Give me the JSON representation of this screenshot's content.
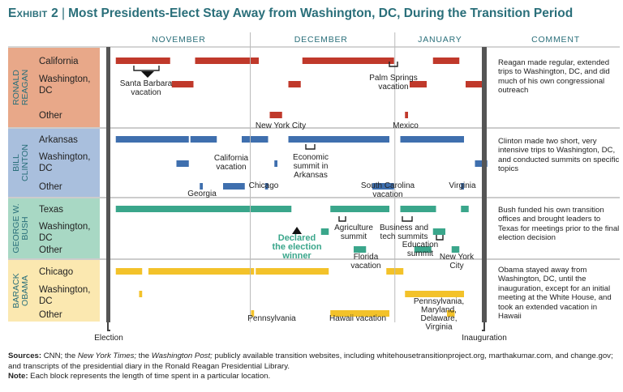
{
  "title": {
    "exhibit": "Exhibit 2",
    "text": "Most Presidents-Elect Stay Away from Washington, DC, During the Transition Period"
  },
  "colors": {
    "accent": "#2a6f7a",
    "reagan_bar": "#c0392b",
    "reagan_bg": "#e8a889",
    "clinton_bar": "#3f6fae",
    "clinton_bg": "#a9bfdd",
    "bush_bar": "#3aa68b",
    "bush_bg": "#a8d8c4",
    "obama_bar": "#f3c22a",
    "obama_bg": "#fbe8b0",
    "divider": "#555555"
  },
  "chart_data": {
    "type": "gantt",
    "x_unit": "day of transition period (Nov 1 – Jan 20)",
    "months": [
      {
        "label": "NOVEMBER",
        "start_day": 1,
        "end_day": 30
      },
      {
        "label": "DECEMBER",
        "start_day": 31,
        "end_day": 61
      },
      {
        "label": "JANUARY",
        "start_day": 62,
        "end_day": 81
      }
    ],
    "comment_header": "COMMENT",
    "election_label": "Election",
    "inauguration_label": "Inauguration",
    "groups": [
      {
        "name": "RONALD REAGAN",
        "bar_color": "#c0392b",
        "bg_color": "#e8a889",
        "rows": [
          {
            "label": "California",
            "segments": [
              [
                2,
                14
              ],
              [
                19,
                33
              ],
              [
                42,
                62
              ],
              [
                70,
                76
              ]
            ]
          },
          {
            "label": "Washington, DC",
            "segments": [
              [
                14,
                19
              ],
              [
                39,
                42
              ],
              [
                65,
                69
              ],
              [
                77,
                81
              ]
            ]
          },
          {
            "label": "Other",
            "segments": [
              [
                35,
                38
              ],
              [
                64,
                65
              ]
            ]
          }
        ],
        "comment": "Reagan made regular, extended trips to Washington, DC, and did much of his own congressional outreach"
      },
      {
        "name": "BILL CLINTON",
        "bar_color": "#3f6fae",
        "bg_color": "#a9bfdd",
        "rows": [
          {
            "label": "Arkansas",
            "segments": [
              [
                2,
                18
              ],
              [
                18,
                24
              ],
              [
                29,
                35
              ],
              [
                39,
                61
              ],
              [
                63,
                77
              ]
            ]
          },
          {
            "label": "Washington, DC",
            "segments": [
              [
                15,
                18
              ],
              [
                36,
                37
              ],
              [
                79,
                82
              ]
            ]
          },
          {
            "label": "Other",
            "segments": [
              [
                20,
                21
              ],
              [
                25,
                30
              ],
              [
                34,
                35
              ],
              [
                57,
                62
              ],
              [
                76,
                77
              ]
            ]
          }
        ],
        "comment": "Clinton made two short, very intensive trips to Washington, DC, and conducted summits on specific topics"
      },
      {
        "name": "GEORGE W. BUSH",
        "bar_color": "#3aa68b",
        "bg_color": "#a8d8c4",
        "rows": [
          {
            "label": "Texas",
            "segments": [
              [
                2,
                40
              ],
              [
                48,
                61
              ],
              [
                63,
                71
              ],
              [
                76,
                78
              ]
            ]
          },
          {
            "label": "Washington, DC",
            "segments": [
              [
                46,
                48
              ],
              [
                70,
                73
              ]
            ]
          },
          {
            "label": "Other",
            "segments": [
              [
                53,
                56
              ],
              [
                66,
                70
              ],
              [
                74,
                76
              ]
            ]
          }
        ],
        "comment": "Bush funded his own transition offices and brought leaders to Texas for meetings prior to the final election decision"
      },
      {
        "name": "BARACK OBAMA",
        "bar_color": "#f3c22a",
        "bg_color": "#fbe8b0",
        "rows": [
          {
            "label": "Chicago",
            "segments": [
              [
                2,
                8
              ],
              [
                9,
                32
              ],
              [
                32,
                48
              ],
              [
                60,
                64
              ]
            ]
          },
          {
            "label": "Washington, DC",
            "segments": [
              [
                7,
                8
              ],
              [
                64,
                77
              ]
            ]
          },
          {
            "label": "Other",
            "segments": [
              [
                31,
                32
              ],
              [
                48,
                61
              ],
              [
                73,
                75
              ]
            ]
          }
        ],
        "comment": "Obama stayed away from Washington, DC, until the inauguration, except for an initial meeting at the White House, and took an extended vacation in Hawaii"
      }
    ],
    "annotations": [
      {
        "text": "Santa Barbara vacation",
        "group": 0
      },
      {
        "text": "Palm Springs vacation",
        "group": 0
      },
      {
        "text": "New York City",
        "group": 0
      },
      {
        "text": "Mexico",
        "group": 0
      },
      {
        "text": "California vacation",
        "group": 1
      },
      {
        "text": "Economic summit in Arkansas",
        "group": 1
      },
      {
        "text": "Georgia",
        "group": 1
      },
      {
        "text": "Chicago",
        "group": 1
      },
      {
        "text": "South Carolina vacation",
        "group": 1
      },
      {
        "text": "Virginia",
        "group": 1
      },
      {
        "text": "Declared the election winner",
        "group": 2
      },
      {
        "text": "Agriculture summit",
        "group": 2
      },
      {
        "text": "Business and tech summits",
        "group": 2
      },
      {
        "text": "Education summit",
        "group": 2
      },
      {
        "text": "Florida vacation",
        "group": 2
      },
      {
        "text": "New York City",
        "group": 2
      },
      {
        "text": "Pennsylvania",
        "group": 3
      },
      {
        "text": "Hawaii vacation",
        "group": 3
      },
      {
        "text": "Pennsylvania, Maryland, Delaware, Virginia",
        "group": 3
      }
    ]
  },
  "sources": {
    "label": "Sources:",
    "p1": " CNN; the ",
    "nyt": "New York Times;",
    "p2": " the ",
    "wp": "Washington Post;",
    "p3": " publicly available transition websites, including whitehousetransitionproject.org, marthakumar.com, and change.gov; and transcripts of the presidential diary in the Ronald Reagan Presidential Library.",
    "note_label": "Note:",
    "note": " Each block represents the length of time spent in a particular location."
  }
}
